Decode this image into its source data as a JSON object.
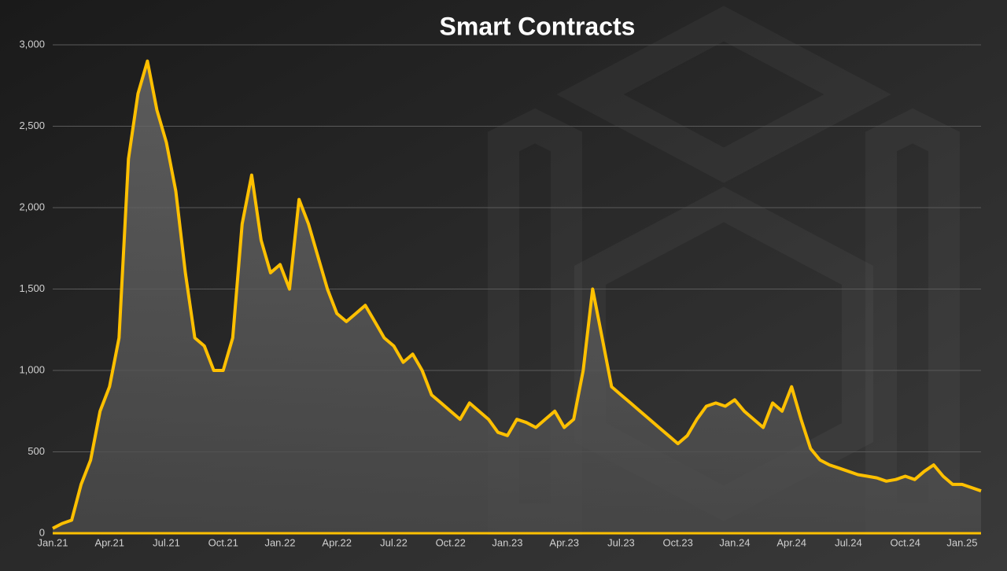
{
  "chart_data": {
    "type": "line",
    "title": "Smart Contracts",
    "categories": [
      "Jan.21",
      null,
      null,
      null,
      null,
      null,
      "Apr.21",
      null,
      null,
      null,
      null,
      null,
      "Jul.21",
      null,
      null,
      null,
      null,
      null,
      "Oct.21",
      null,
      null,
      null,
      null,
      null,
      "Jan.22",
      null,
      null,
      null,
      null,
      null,
      "Apr.22",
      null,
      null,
      null,
      null,
      null,
      "Jul.22",
      null,
      null,
      null,
      null,
      null,
      "Oct.22",
      null,
      null,
      null,
      null,
      null,
      "Jan.23",
      null,
      null,
      null,
      null,
      null,
      "Apr.23",
      null,
      null,
      null,
      null,
      null,
      "Jul.23",
      null,
      null,
      null,
      null,
      null,
      "Oct.23",
      null,
      null,
      null,
      null,
      null,
      "Jan.24",
      null,
      null,
      null,
      null,
      null,
      "Apr.24",
      null,
      null,
      null,
      null,
      null,
      "Jul.24",
      null,
      null,
      null,
      null,
      null,
      "Oct.24",
      null,
      null,
      null,
      null,
      null,
      "Jan.25",
      null,
      null
    ],
    "values": [
      30,
      60,
      80,
      300,
      450,
      750,
      900,
      1200,
      2300,
      2700,
      2900,
      2600,
      2400,
      2100,
      1600,
      1200,
      1150,
      1000,
      1000,
      1200,
      1900,
      2200,
      1800,
      1600,
      1650,
      1500,
      2050,
      1900,
      1700,
      1500,
      1350,
      1300,
      1350,
      1400,
      1300,
      1200,
      1150,
      1050,
      1100,
      1000,
      850,
      800,
      750,
      700,
      800,
      750,
      700,
      620,
      600,
      700,
      680,
      650,
      700,
      750,
      650,
      700,
      1000,
      1500,
      1200,
      900,
      850,
      800,
      750,
      700,
      650,
      600,
      550,
      600,
      700,
      780,
      800,
      780,
      820,
      750,
      700,
      650,
      800,
      750,
      900,
      700,
      520,
      450,
      420,
      400,
      380,
      360,
      350,
      340,
      320,
      330,
      350,
      330,
      380,
      420,
      350,
      300,
      300,
      280,
      260
    ],
    "color": "#ffc000",
    "ylim": [
      0,
      3000
    ],
    "yticks": [
      0,
      500,
      {
        "value": 1000,
        "label": "1,000"
      },
      {
        "value": 1500,
        "label": "1,500"
      },
      {
        "value": 2000,
        "label": "2,000"
      },
      {
        "value": 2500,
        "label": "2,500"
      },
      {
        "value": 3000,
        "label": "3,000"
      }
    ],
    "grid": true
  }
}
